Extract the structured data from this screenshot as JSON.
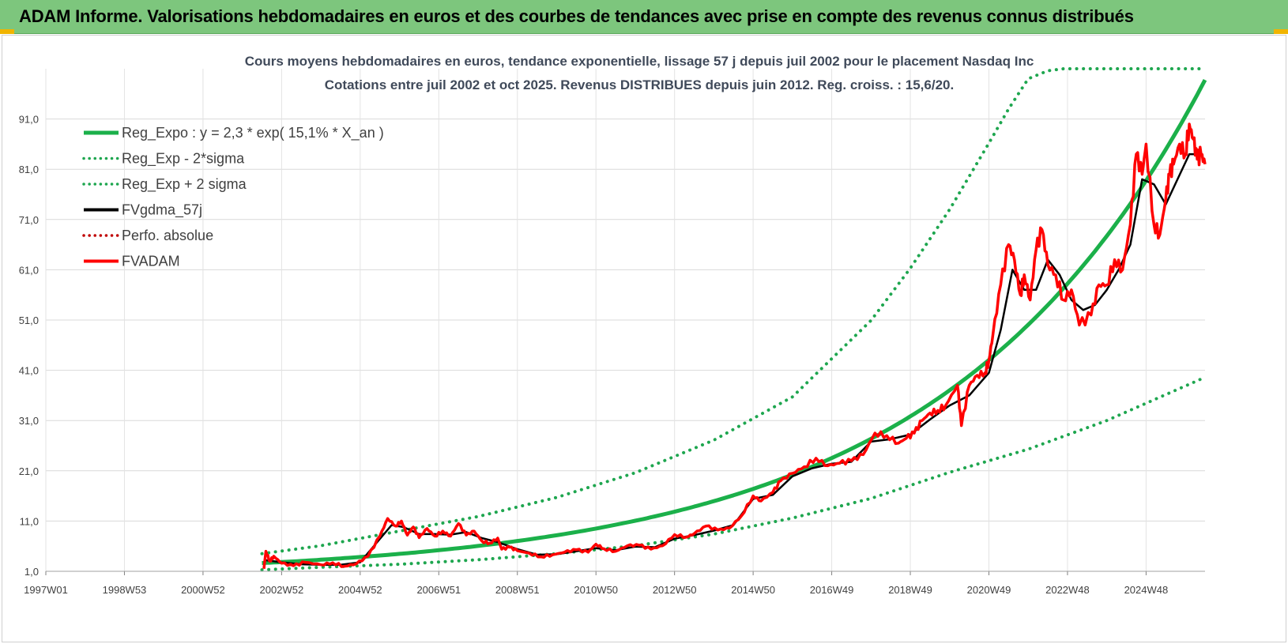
{
  "header": {
    "title": "ADAM Informe. Valorisations hebdomadaires en euros et des courbes de tendances avec prise en compte des revenus connus distribués"
  },
  "colors": {
    "header_bg": "#7dc67d",
    "reg_green": "#1bb04a",
    "sigma_green": "#1ea64f",
    "black": "#000000",
    "red": "#ff0000",
    "dark_red": "#c00000",
    "title_text": "#404a5a"
  },
  "chart_data": {
    "type": "line",
    "title_line1": "Cours moyens hebdomadaires en euros, tendance exponentielle, lissage 57 j depuis juil 2002 pour le placement Nasdaq Inc",
    "title_line2": "Cotations entre juil 2002 et oct 2025. Revenus DISTRIBUES depuis juin 2012. Reg. croiss. : 15,6/20.",
    "x_range": [
      1997.0,
      2026.5
    ],
    "ylim": [
      1.0,
      101.0
    ],
    "y_ticks": [
      "1,0",
      "11,0",
      "21,0",
      "31,0",
      "41,0",
      "51,0",
      "61,0",
      "71,0",
      "81,0",
      "91,0"
    ],
    "y_tick_values": [
      1,
      11,
      21,
      31,
      41,
      51,
      61,
      71,
      81,
      91
    ],
    "x_ticks": [
      {
        "label": "1997W01",
        "t": 1997.0
      },
      {
        "label": "1998W53",
        "t": 1999.0
      },
      {
        "label": "2000W52",
        "t": 2001.0
      },
      {
        "label": "2002W52",
        "t": 2003.0
      },
      {
        "label": "2004W52",
        "t": 2005.0
      },
      {
        "label": "2006W51",
        "t": 2007.0
      },
      {
        "label": "2008W51",
        "t": 2009.0
      },
      {
        "label": "2010W50",
        "t": 2011.0
      },
      {
        "label": "2012W50",
        "t": 2013.0
      },
      {
        "label": "2014W50",
        "t": 2015.0
      },
      {
        "label": "2016W49",
        "t": 2017.0
      },
      {
        "label": "2018W49",
        "t": 2019.0
      },
      {
        "label": "2020W49",
        "t": 2021.0
      },
      {
        "label": "2022W48",
        "t": 2023.0
      },
      {
        "label": "2024W48",
        "t": 2025.0
      }
    ],
    "legend": [
      {
        "label": "Reg_Expo : y = 2,3 * exp( 15,1% *  X_an )",
        "style": "solid",
        "color": "#1bb04a",
        "series": "reg"
      },
      {
        "label": "Reg_Exp - 2*sigma",
        "style": "dotted",
        "color": "#1ea64f",
        "series": "lower"
      },
      {
        "label": "Reg_Exp + 2 sigma",
        "style": "dotted",
        "color": "#1ea64f",
        "series": "upper"
      },
      {
        "label": "FVgdma_57j",
        "style": "solid",
        "color": "#000000",
        "series": "fv57"
      },
      {
        "label": "Perfo. absolue",
        "style": "dotted",
        "color": "#c00000",
        "series": "perfo"
      },
      {
        "label": "FVADAM",
        "style": "solid",
        "color": "#ff0000",
        "series": "fvadam"
      }
    ],
    "regression": {
      "a": 2.3,
      "b": 0.151,
      "t0": 2001.6,
      "t_start": 2002.5,
      "t_end": 2026.5
    },
    "sigma_bands": {
      "upper": {
        "t": [
          2002.5,
          2004.0,
          2006.0,
          2008.0,
          2010.0,
          2012.0,
          2014.0,
          2016.0,
          2018.0,
          2019.0,
          2020.0,
          2021.0,
          2021.5,
          2022.0,
          2022.5,
          2022.9,
          2023.0,
          2024.0,
          2026.5
        ],
        "y": [
          4.5,
          6.1,
          9.0,
          11.9,
          15.7,
          20.6,
          27.1,
          35.7,
          50.9,
          61.3,
          73.0,
          86.2,
          93.0,
          99.0,
          100.6,
          101.0,
          101.0,
          101.0,
          101.0
        ]
      },
      "lower": {
        "t": [
          2002.5,
          2004.0,
          2006.0,
          2008.0,
          2010.0,
          2012.0,
          2014.0,
          2016.0,
          2018.0,
          2020.0,
          2022.0,
          2024.0,
          2026.5
        ],
        "y": [
          1.3,
          1.8,
          2.4,
          3.3,
          4.5,
          6.1,
          8.4,
          11.6,
          15.5,
          20.7,
          25.3,
          31.0,
          39.6
        ]
      }
    },
    "series_fvadam": {
      "t": [
        2002.55,
        2002.6,
        2002.7,
        2002.8,
        2003.0,
        2003.3,
        2003.6,
        2004.0,
        2004.3,
        2004.6,
        2004.9,
        2005.2,
        2005.5,
        2005.7,
        2005.9,
        2006.05,
        2006.2,
        2006.35,
        2006.5,
        2006.7,
        2006.9,
        2007.1,
        2007.3,
        2007.5,
        2007.7,
        2007.9,
        2008.1,
        2008.3,
        2008.5,
        2008.6,
        2008.8,
        2009.0,
        2009.3,
        2009.6,
        2009.9,
        2010.2,
        2010.5,
        2010.8,
        2011.0,
        2011.2,
        2011.5,
        2011.8,
        2012.1,
        2012.4,
        2012.7,
        2013.0,
        2013.3,
        2013.5,
        2013.8,
        2014.1,
        2014.4,
        2014.7,
        2015.0,
        2015.2,
        2015.5,
        2015.7,
        2016.0,
        2016.3,
        2016.6,
        2016.9,
        2017.2,
        2017.5,
        2017.8,
        2018.1,
        2018.4,
        2018.7,
        2018.9,
        2019.1,
        2019.3,
        2019.5,
        2019.7,
        2019.9,
        2020.2,
        2020.3,
        2020.5,
        2020.7,
        2020.9,
        2021.0,
        2021.1,
        2021.3,
        2021.5,
        2021.65,
        2021.8,
        2021.9,
        2022.05,
        2022.2,
        2022.35,
        2022.5,
        2022.7,
        2022.9,
        2023.1,
        2023.3,
        2023.6,
        2023.8,
        2024.0,
        2024.2,
        2024.4,
        2024.6,
        2024.75,
        2024.9,
        2025.0,
        2025.2,
        2025.35,
        2025.5,
        2025.6,
        2025.7,
        2025.85,
        2026.0,
        2026.1,
        2026.2,
        2026.3,
        2026.4,
        2026.5
      ],
      "y": [
        1.5,
        5.0,
        3.0,
        4.0,
        2.6,
        2.1,
        2.8,
        2.3,
        2.7,
        2.0,
        2.5,
        4.0,
        8.0,
        11.5,
        10.0,
        11.0,
        8.2,
        9.8,
        7.7,
        9.5,
        8.0,
        9.0,
        8.0,
        10.5,
        8.2,
        9.0,
        7.0,
        6.6,
        7.6,
        5.4,
        5.8,
        5.1,
        4.6,
        3.9,
        4.3,
        4.8,
        5.3,
        4.8,
        6.4,
        5.5,
        5.0,
        6.1,
        6.2,
        5.4,
        6.1,
        8.3,
        7.8,
        8.5,
        10.0,
        9.2,
        9.6,
        12.0,
        16.0,
        15.0,
        16.7,
        19.0,
        20.5,
        21.8,
        23.5,
        22.0,
        22.5,
        23.0,
        24.2,
        28.5,
        28.0,
        26.5,
        27.5,
        28.5,
        31.0,
        32.5,
        33.0,
        34.0,
        38.0,
        30.0,
        38.0,
        40.0,
        40.5,
        43.0,
        48.0,
        58.0,
        66.0,
        63.0,
        56.0,
        60.0,
        55.0,
        65.0,
        69.0,
        62.0,
        60.0,
        55.0,
        57.0,
        50.0,
        52.0,
        58.0,
        58.0,
        63.0,
        61.0,
        70.0,
        84.0,
        80.0,
        86.0,
        70.0,
        68.0,
        75.0,
        80.0,
        82.0,
        86.0,
        84.0,
        90.0,
        87.0,
        83.0,
        84.0,
        82.0
      ]
    },
    "series_fv57": {
      "t": [
        2002.6,
        2003.0,
        2003.5,
        2004.0,
        2004.5,
        2005.0,
        2005.4,
        2005.8,
        2006.1,
        2006.5,
        2006.9,
        2007.3,
        2007.7,
        2008.1,
        2008.5,
        2009.0,
        2009.5,
        2010.0,
        2010.5,
        2011.0,
        2011.5,
        2012.0,
        2012.5,
        2013.0,
        2013.5,
        2014.0,
        2014.5,
        2015.0,
        2015.5,
        2016.0,
        2016.5,
        2017.0,
        2017.5,
        2018.0,
        2018.5,
        2019.0,
        2019.5,
        2020.0,
        2020.5,
        2021.0,
        2021.3,
        2021.6,
        2021.9,
        2022.2,
        2022.5,
        2022.8,
        2023.1,
        2023.4,
        2023.7,
        2024.0,
        2024.3,
        2024.6,
        2024.9,
        2025.2,
        2025.5,
        2025.8,
        2026.1,
        2026.3
      ],
      "y": [
        3.2,
        2.8,
        2.4,
        2.3,
        2.3,
        2.8,
        6.5,
        10.2,
        9.8,
        8.4,
        8.4,
        8.3,
        8.8,
        7.6,
        6.8,
        5.4,
        4.3,
        4.4,
        5.0,
        5.6,
        5.2,
        5.9,
        5.8,
        7.5,
        8.2,
        9.1,
        10.2,
        15.4,
        16.2,
        19.9,
        21.5,
        22.4,
        22.8,
        26.8,
        27.3,
        28.2,
        31.2,
        34.0,
        36.0,
        40.5,
        49.0,
        61.0,
        57.0,
        57.0,
        63.0,
        60.0,
        55.0,
        53.0,
        54.0,
        57.0,
        61.0,
        66.0,
        79.0,
        78.0,
        74.0,
        79.0,
        84.0,
        84.0
      ]
    }
  }
}
